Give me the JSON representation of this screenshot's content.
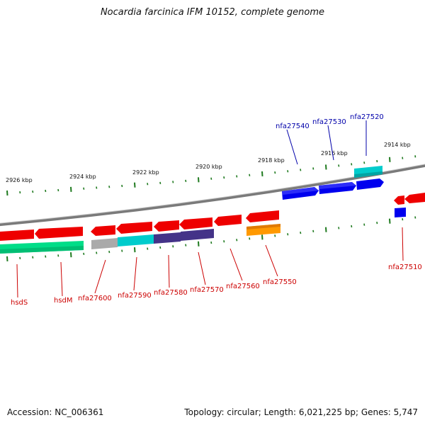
{
  "title": "Nocardia farcinica IFM 10152, complete genome",
  "footer": {
    "accession": "Accession: NC_006361",
    "summary": "Topology: circular; Length: 6,021,225 bp; Genes: 5,747"
  },
  "colors": {
    "backbone": "#7a7a7a",
    "tick": "#1f7a1f",
    "forward_label": "#0000aa",
    "reverse_label": "#cc0000"
  },
  "scale_labels": [
    "2926 kbp",
    "2924 kbp",
    "2922 kbp",
    "2920 kbp",
    "2918 kbp",
    "2916 kbp",
    "2914 kbp"
  ],
  "genes_forward": [
    {
      "label": "nfa27540",
      "color": "#0000ee"
    },
    {
      "label": "nfa27530",
      "color": "#0000ee"
    },
    {
      "label": "nfa27520",
      "color": "#00cccc"
    }
  ],
  "genes_reverse": [
    {
      "label": "hsdS",
      "color": "#ee0000"
    },
    {
      "label": "hsdM",
      "color": "#ee0000"
    },
    {
      "label": "nfa27600",
      "color": "#ee0000"
    },
    {
      "label": "nfa27590",
      "color": "#ee0000"
    },
    {
      "label": "nfa27580",
      "color": "#ee0000"
    },
    {
      "label": "nfa27570",
      "color": "#ee0000"
    },
    {
      "label": "nfa27560",
      "color": "#ee0000"
    },
    {
      "label": "nfa27550",
      "color": "#ee0000"
    },
    {
      "label": "nfa27510",
      "color": "#ee0000"
    }
  ],
  "features": [
    {
      "name": "hsdS-cds",
      "color": "#00dd88"
    },
    {
      "name": "nfa27600-cds",
      "color": "#aaaaaa"
    },
    {
      "name": "nfa27590-cds",
      "color": "#00cccc"
    },
    {
      "name": "nfa27580-cds",
      "color": "#443388"
    },
    {
      "name": "nfa27570-cds",
      "color": "#443388"
    },
    {
      "name": "nfa27550-cds",
      "color": "#ff9900"
    },
    {
      "name": "nfa27510-cds",
      "color": "#0000ee"
    }
  ]
}
